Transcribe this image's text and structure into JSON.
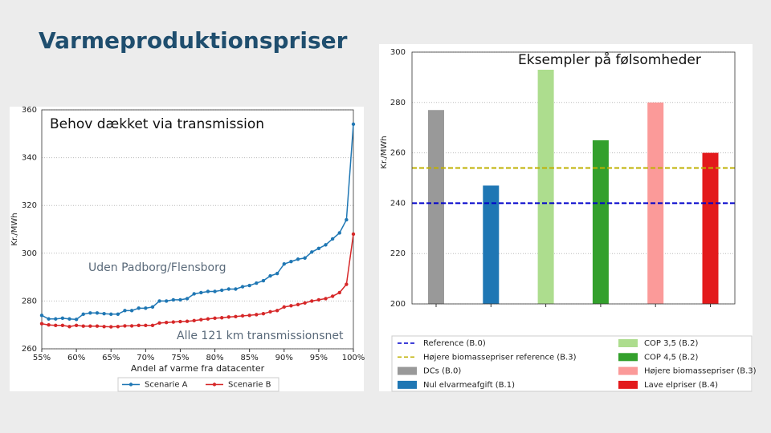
{
  "title": "Varmeproduktionspriser",
  "chart_data": [
    {
      "type": "line",
      "annotations": [
        "Behov dækket via transmission",
        "Uden Padborg/Flensborg",
        "Alle 121 km transmissionsnet"
      ],
      "x_label": "Andel af varme fra datacenter",
      "y_label": "Kr./MWh",
      "x": [
        55,
        56,
        57,
        58,
        59,
        60,
        61,
        62,
        63,
        64,
        65,
        66,
        67,
        68,
        69,
        70,
        71,
        72,
        73,
        74,
        75,
        76,
        77,
        78,
        79,
        80,
        81,
        82,
        83,
        84,
        85,
        86,
        87,
        88,
        89,
        90,
        91,
        92,
        93,
        94,
        95,
        96,
        97,
        98,
        99,
        100
      ],
      "series": [
        {
          "name": "Scenarie A",
          "color": "#1f77b4",
          "values": [
            274,
            272.5,
            272.5,
            272.8,
            272.5,
            272.3,
            274.5,
            275,
            275,
            274.7,
            274.5,
            274.5,
            276,
            276,
            277,
            277,
            277.5,
            280,
            280,
            280.5,
            280.5,
            281,
            283,
            283.5,
            284,
            284,
            284.5,
            285,
            285,
            286,
            286.5,
            287.5,
            288.5,
            290.5,
            291.5,
            295.5,
            296.5,
            297.5,
            298,
            300.5,
            302,
            303.5,
            306,
            308.5,
            314,
            354
          ]
        },
        {
          "name": "Scenarie B",
          "color": "#d62728",
          "values": [
            270.5,
            270,
            269.8,
            269.8,
            269.3,
            269.8,
            269.5,
            269.5,
            269.5,
            269.3,
            269.2,
            269.3,
            269.6,
            269.6,
            269.8,
            269.8,
            269.8,
            270.8,
            271,
            271.2,
            271.4,
            271.5,
            271.8,
            272.2,
            272.5,
            272.8,
            273,
            273.3,
            273.5,
            273.8,
            274,
            274.3,
            274.7,
            275.5,
            276,
            277.5,
            278,
            278.5,
            279.2,
            280,
            280.5,
            281,
            282,
            283.5,
            287,
            308
          ]
        }
      ],
      "xlim": [
        55,
        100
      ],
      "xticks": [
        {
          "value": 55,
          "label": "55%"
        },
        {
          "value": 60,
          "label": "60%"
        },
        {
          "value": 65,
          "label": "65%"
        },
        {
          "value": 70,
          "label": "70%"
        },
        {
          "value": 75,
          "label": "75%"
        },
        {
          "value": 80,
          "label": "80%"
        },
        {
          "value": 85,
          "label": "85%"
        },
        {
          "value": 90,
          "label": "90%"
        },
        {
          "value": 95,
          "label": "95%"
        },
        {
          "value": 100,
          "label": "100%"
        }
      ],
      "ylim": [
        260,
        360
      ],
      "yticks": [
        260,
        280,
        300,
        320,
        340,
        360
      ],
      "grid": true
    },
    {
      "type": "bar",
      "title": "Eksempler på følsomheder",
      "y_label": "Kr./MWh",
      "reference_lines": [
        {
          "name": "Reference (B.0)",
          "color": "#0000cc",
          "value": 240
        },
        {
          "name": "Højere biomassepriser reference (B.3)",
          "color": "#bfb000",
          "value": 254
        }
      ],
      "bars": [
        {
          "name": "DCs (B.0)",
          "color": "#999999",
          "value": 277
        },
        {
          "name": "Nul elvarmeafgift (B.1)",
          "color": "#1f77b4",
          "value": 247
        },
        {
          "name": "COP 3,5 (B.2)",
          "color": "#addd8e",
          "value": 293
        },
        {
          "name": "COP 4,5 (B.2)",
          "color": "#33a02c",
          "value": 265
        },
        {
          "name": "Højere biomassepriser (B.3)",
          "color": "#fb9a99",
          "value": 280
        },
        {
          "name": "Lave elpriser (B.4)",
          "color": "#e31a1c",
          "value": 260
        }
      ],
      "ylim": [
        200,
        300
      ],
      "yticks": [
        200,
        220,
        240,
        260,
        280,
        300
      ],
      "grid": true
    }
  ]
}
